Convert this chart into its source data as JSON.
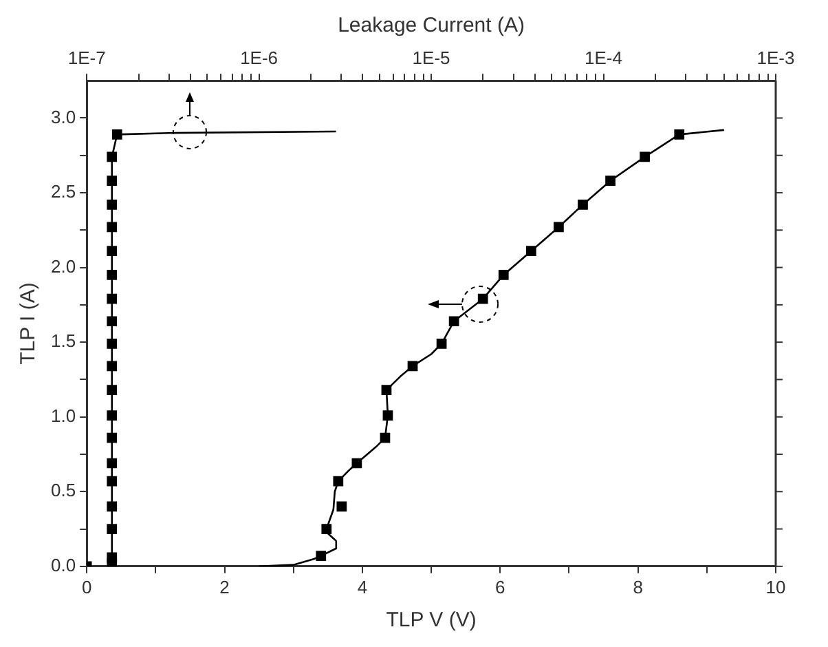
{
  "chart_data": {
    "type": "line",
    "xlabel": "TLP V (V)",
    "ylabel": "TLP I (A)",
    "x2label": "Leakage Current (A)",
    "log": "x2",
    "grid": false,
    "legend": false,
    "xlim": [
      0,
      10
    ],
    "xticks": [
      0,
      {
        "value": 1,
        "label": null
      },
      2,
      {
        "value": 3,
        "label": null
      },
      4,
      {
        "value": 5,
        "label": null
      },
      6,
      {
        "value": 7,
        "label": null
      },
      8,
      {
        "value": 9,
        "label": null
      },
      10
    ],
    "ylim": [
      0,
      3.25
    ],
    "yticks": [
      {
        "value": 0,
        "label": "0.0"
      },
      {
        "value": 0.25,
        "label": null
      },
      {
        "value": 0.5,
        "label": "0.5"
      },
      {
        "value": 0.75,
        "label": null
      },
      {
        "value": 1,
        "label": "1.0"
      },
      {
        "value": 1.25,
        "label": null
      },
      {
        "value": 1.5,
        "label": "1.5"
      },
      {
        "value": 1.75,
        "label": null
      },
      {
        "value": 2,
        "label": "2.0"
      },
      {
        "value": 2.25,
        "label": null
      },
      {
        "value": 2.5,
        "label": "2.5"
      },
      {
        "value": 2.75,
        "label": null
      },
      {
        "value": 3,
        "label": "3.0"
      }
    ],
    "x2lim": [
      1e-07,
      0.001
    ],
    "x2ticks": [
      {
        "value": 1e-07,
        "label": "1E-7"
      },
      {
        "value": 2e-07,
        "label": null
      },
      {
        "value": 3e-07,
        "label": null
      },
      {
        "value": 4e-07,
        "label": null
      },
      {
        "value": 5e-07,
        "label": null
      },
      {
        "value": 6e-07,
        "label": null
      },
      {
        "value": 7e-07,
        "label": null
      },
      {
        "value": 8e-07,
        "label": null
      },
      {
        "value": 9e-07,
        "label": null
      },
      {
        "value": 1e-06,
        "label": "1E-6"
      },
      {
        "value": 2e-06,
        "label": null
      },
      {
        "value": 3e-06,
        "label": null
      },
      {
        "value": 4e-06,
        "label": null
      },
      {
        "value": 5e-06,
        "label": null
      },
      {
        "value": 6e-06,
        "label": null
      },
      {
        "value": 7e-06,
        "label": null
      },
      {
        "value": 8e-06,
        "label": null
      },
      {
        "value": 9e-06,
        "label": null
      },
      {
        "value": 1e-05,
        "label": "1E-5"
      },
      {
        "value": 2e-05,
        "label": null
      },
      {
        "value": 3e-05,
        "label": null
      },
      {
        "value": 4e-05,
        "label": null
      },
      {
        "value": 5e-05,
        "label": null
      },
      {
        "value": 6e-05,
        "label": null
      },
      {
        "value": 7e-05,
        "label": null
      },
      {
        "value": 8e-05,
        "label": null
      },
      {
        "value": 9e-05,
        "label": null
      },
      {
        "value": 0.0001,
        "label": "1E-4"
      },
      {
        "value": 0.0002,
        "label": null
      },
      {
        "value": 0.0003,
        "label": null
      },
      {
        "value": 0.0004,
        "label": null
      },
      {
        "value": 0.0005,
        "label": null
      },
      {
        "value": 0.0006,
        "label": null
      },
      {
        "value": 0.0007,
        "label": null
      },
      {
        "value": 0.0008,
        "label": null
      },
      {
        "value": 0.0009,
        "label": null
      },
      {
        "value": 0.001,
        "label": "1E-3"
      }
    ],
    "series": [
      {
        "type": "line",
        "marker": "none",
        "line_style": "solid",
        "color": "#000000",
        "x": [
          2.5,
          3.0,
          3.3,
          3.4,
          3.62,
          3.62,
          3.5,
          3.48,
          3.58,
          3.6,
          3.65,
          3.8,
          3.92,
          4.2,
          4.33,
          4.37,
          4.35,
          4.55,
          4.73,
          5.0,
          5.15,
          5.33,
          5.75,
          6.05,
          6.45,
          6.85,
          7.2,
          7.6,
          8.1,
          8.6,
          9.25
        ],
        "values": [
          0,
          0.01,
          0.05,
          0.07,
          0.12,
          0.17,
          0.22,
          0.25,
          0.38,
          0.5,
          0.57,
          0.64,
          0.69,
          0.8,
          0.86,
          1.01,
          1.18,
          1.27,
          1.34,
          1.42,
          1.49,
          1.64,
          1.79,
          1.95,
          2.11,
          2.27,
          2.42,
          2.58,
          2.74,
          2.89,
          2.92
        ]
      },
      {
        "type": "scatter",
        "marker": "square",
        "color": "#000000",
        "x": [
          0,
          3.4,
          3.48,
          3.7,
          3.65,
          3.92,
          4.33,
          4.37,
          4.35,
          4.73,
          5.15,
          5.33,
          5.75,
          6.05,
          6.45,
          6.85,
          7.2,
          7.6,
          8.1,
          8.6
        ],
        "values": [
          0,
          0.07,
          0.25,
          0.4,
          0.57,
          0.69,
          0.86,
          1.01,
          1.18,
          1.34,
          1.49,
          1.64,
          1.79,
          1.95,
          2.11,
          2.27,
          2.42,
          2.58,
          2.74,
          2.89
        ]
      },
      {
        "type": "line",
        "axis": "x2",
        "marker": "none",
        "line_style": "solid",
        "color": "#000000",
        "x": [
          1.4e-07,
          1.4e-07,
          1.4e-07,
          1.4e-07,
          1.4e-07,
          1.4e-07,
          1.4e-07,
          1.4e-07,
          1.4e-07,
          1.4e-07,
          1.4e-07,
          1.4e-07,
          1.4e-07,
          1.4e-07,
          1.4e-07,
          1.4e-07,
          1.4e-07,
          1.4e-07,
          1.4e-07,
          1.5e-07,
          3e-07,
          2.8e-06
        ],
        "values": [
          0.02,
          0.06,
          0.25,
          0.4,
          0.57,
          0.69,
          0.86,
          1.01,
          1.18,
          1.34,
          1.49,
          1.64,
          1.79,
          1.95,
          2.11,
          2.27,
          2.42,
          2.58,
          2.74,
          2.89,
          2.9,
          2.91
        ]
      },
      {
        "type": "scatter",
        "axis": "x2",
        "marker": "square",
        "color": "#000000",
        "x": [
          1.4e-07,
          1.4e-07,
          1.4e-07,
          1.4e-07,
          1.4e-07,
          1.4e-07,
          1.4e-07,
          1.4e-07,
          1.4e-07,
          1.4e-07,
          1.4e-07,
          1.4e-07,
          1.4e-07,
          1.4e-07,
          1.4e-07,
          1.4e-07,
          1.4e-07,
          1.4e-07,
          1.4e-07,
          1.5e-07
        ],
        "values": [
          0.02,
          0.06,
          0.25,
          0.4,
          0.57,
          0.69,
          0.86,
          1.01,
          1.18,
          1.34,
          1.49,
          1.64,
          1.79,
          1.95,
          2.11,
          2.27,
          2.42,
          2.58,
          2.74,
          2.89
        ]
      }
    ]
  }
}
